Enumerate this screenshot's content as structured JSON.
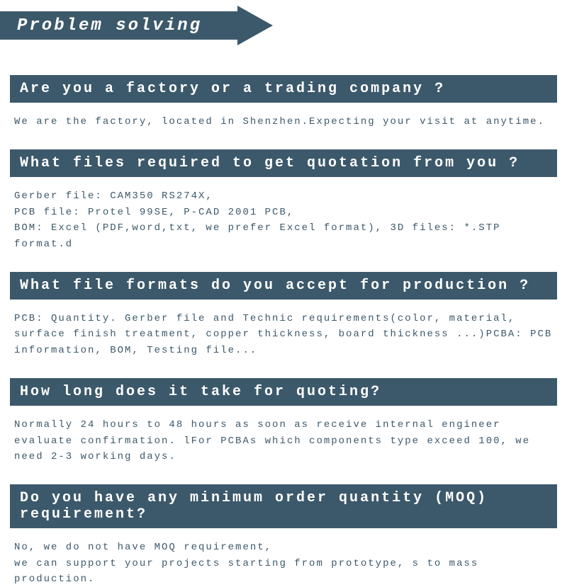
{
  "header": {
    "title": "Problem solving"
  },
  "colors": {
    "primary": "#3c596b",
    "background": "#ffffff",
    "question_text": "#ffffff",
    "answer_text": "#3c596b"
  },
  "typography": {
    "header_fontsize": 24,
    "question_fontsize": 20,
    "answer_fontsize": 14,
    "font_family": "Courier New"
  },
  "faq": [
    {
      "question": "Are you a factory or a trading company ?",
      "answer": "We are the factory, located in Shenzhen.Expecting your visit at anytime."
    },
    {
      "question": "What files required to get quotation from you ?",
      "answer": "Gerber file: CAM350 RS274X,\nPCB file: Protel 99SE, P-CAD 2001 PCB,\nBOM: Excel (PDF,word,txt, we prefer Excel format), 3D files: *.STP format.d"
    },
    {
      "question": "What file formats do you accept for production ?",
      "answer": "PCB: Quantity. Gerber file and Technic requirements(color, material, surface finish treatment, copper thickness, board thickness ...)PCBA: PCB information, BOM, Testing file..."
    },
    {
      "question": "How long does it take for quoting?",
      "answer": "Normally 24 hours to 48 hours as soon as receive internal engineer evaluate confirmation. lFor PCBAs which components type exceed 100, we need 2-3 working days."
    },
    {
      "question": "Do you have any minimum order quantity (MOQ) requirement?",
      "answer": "No, we do not have MOQ requirement,\nwe can support your projects starting from prototype, s to mass production."
    }
  ]
}
